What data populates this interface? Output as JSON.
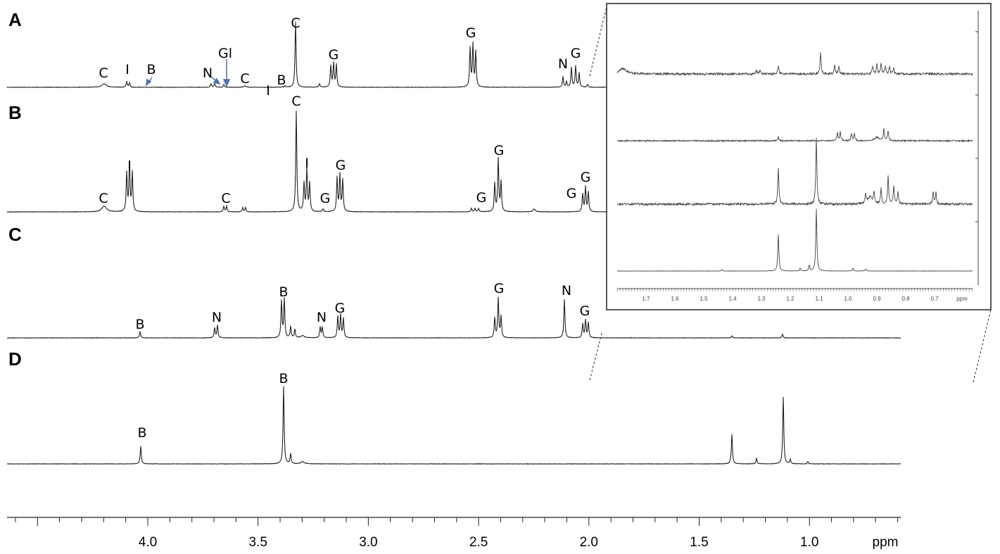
{
  "panels": [
    {
      "label": "A",
      "peaks": [
        "C",
        "I",
        "B",
        "N",
        "Gl",
        "C",
        "I",
        "B",
        "C",
        "G",
        "G",
        "N",
        "G"
      ]
    },
    {
      "label": "B",
      "peaks": [
        "C",
        "I",
        "C",
        "C",
        "I",
        "G",
        "G",
        "G",
        "G",
        "G",
        "G"
      ]
    },
    {
      "label": "C",
      "peaks": [
        "B",
        "N",
        "B",
        "N",
        "G",
        "G",
        "N",
        "G"
      ]
    },
    {
      "label": "D",
      "peaks": [
        "B",
        "B"
      ]
    }
  ],
  "axis": {
    "ticks": [
      "4.0",
      "3.5",
      "3.0",
      "2.5",
      "2.0",
      "1.5",
      "1.0"
    ],
    "unit": "ppm"
  },
  "inset": {
    "ticks": [
      "1.7",
      "1.6",
      "1.5",
      "1.4",
      "1.3",
      "1.2",
      "1.1",
      "1.0",
      "0.9",
      "0.8",
      "0.7"
    ],
    "unit": "ppm"
  }
}
